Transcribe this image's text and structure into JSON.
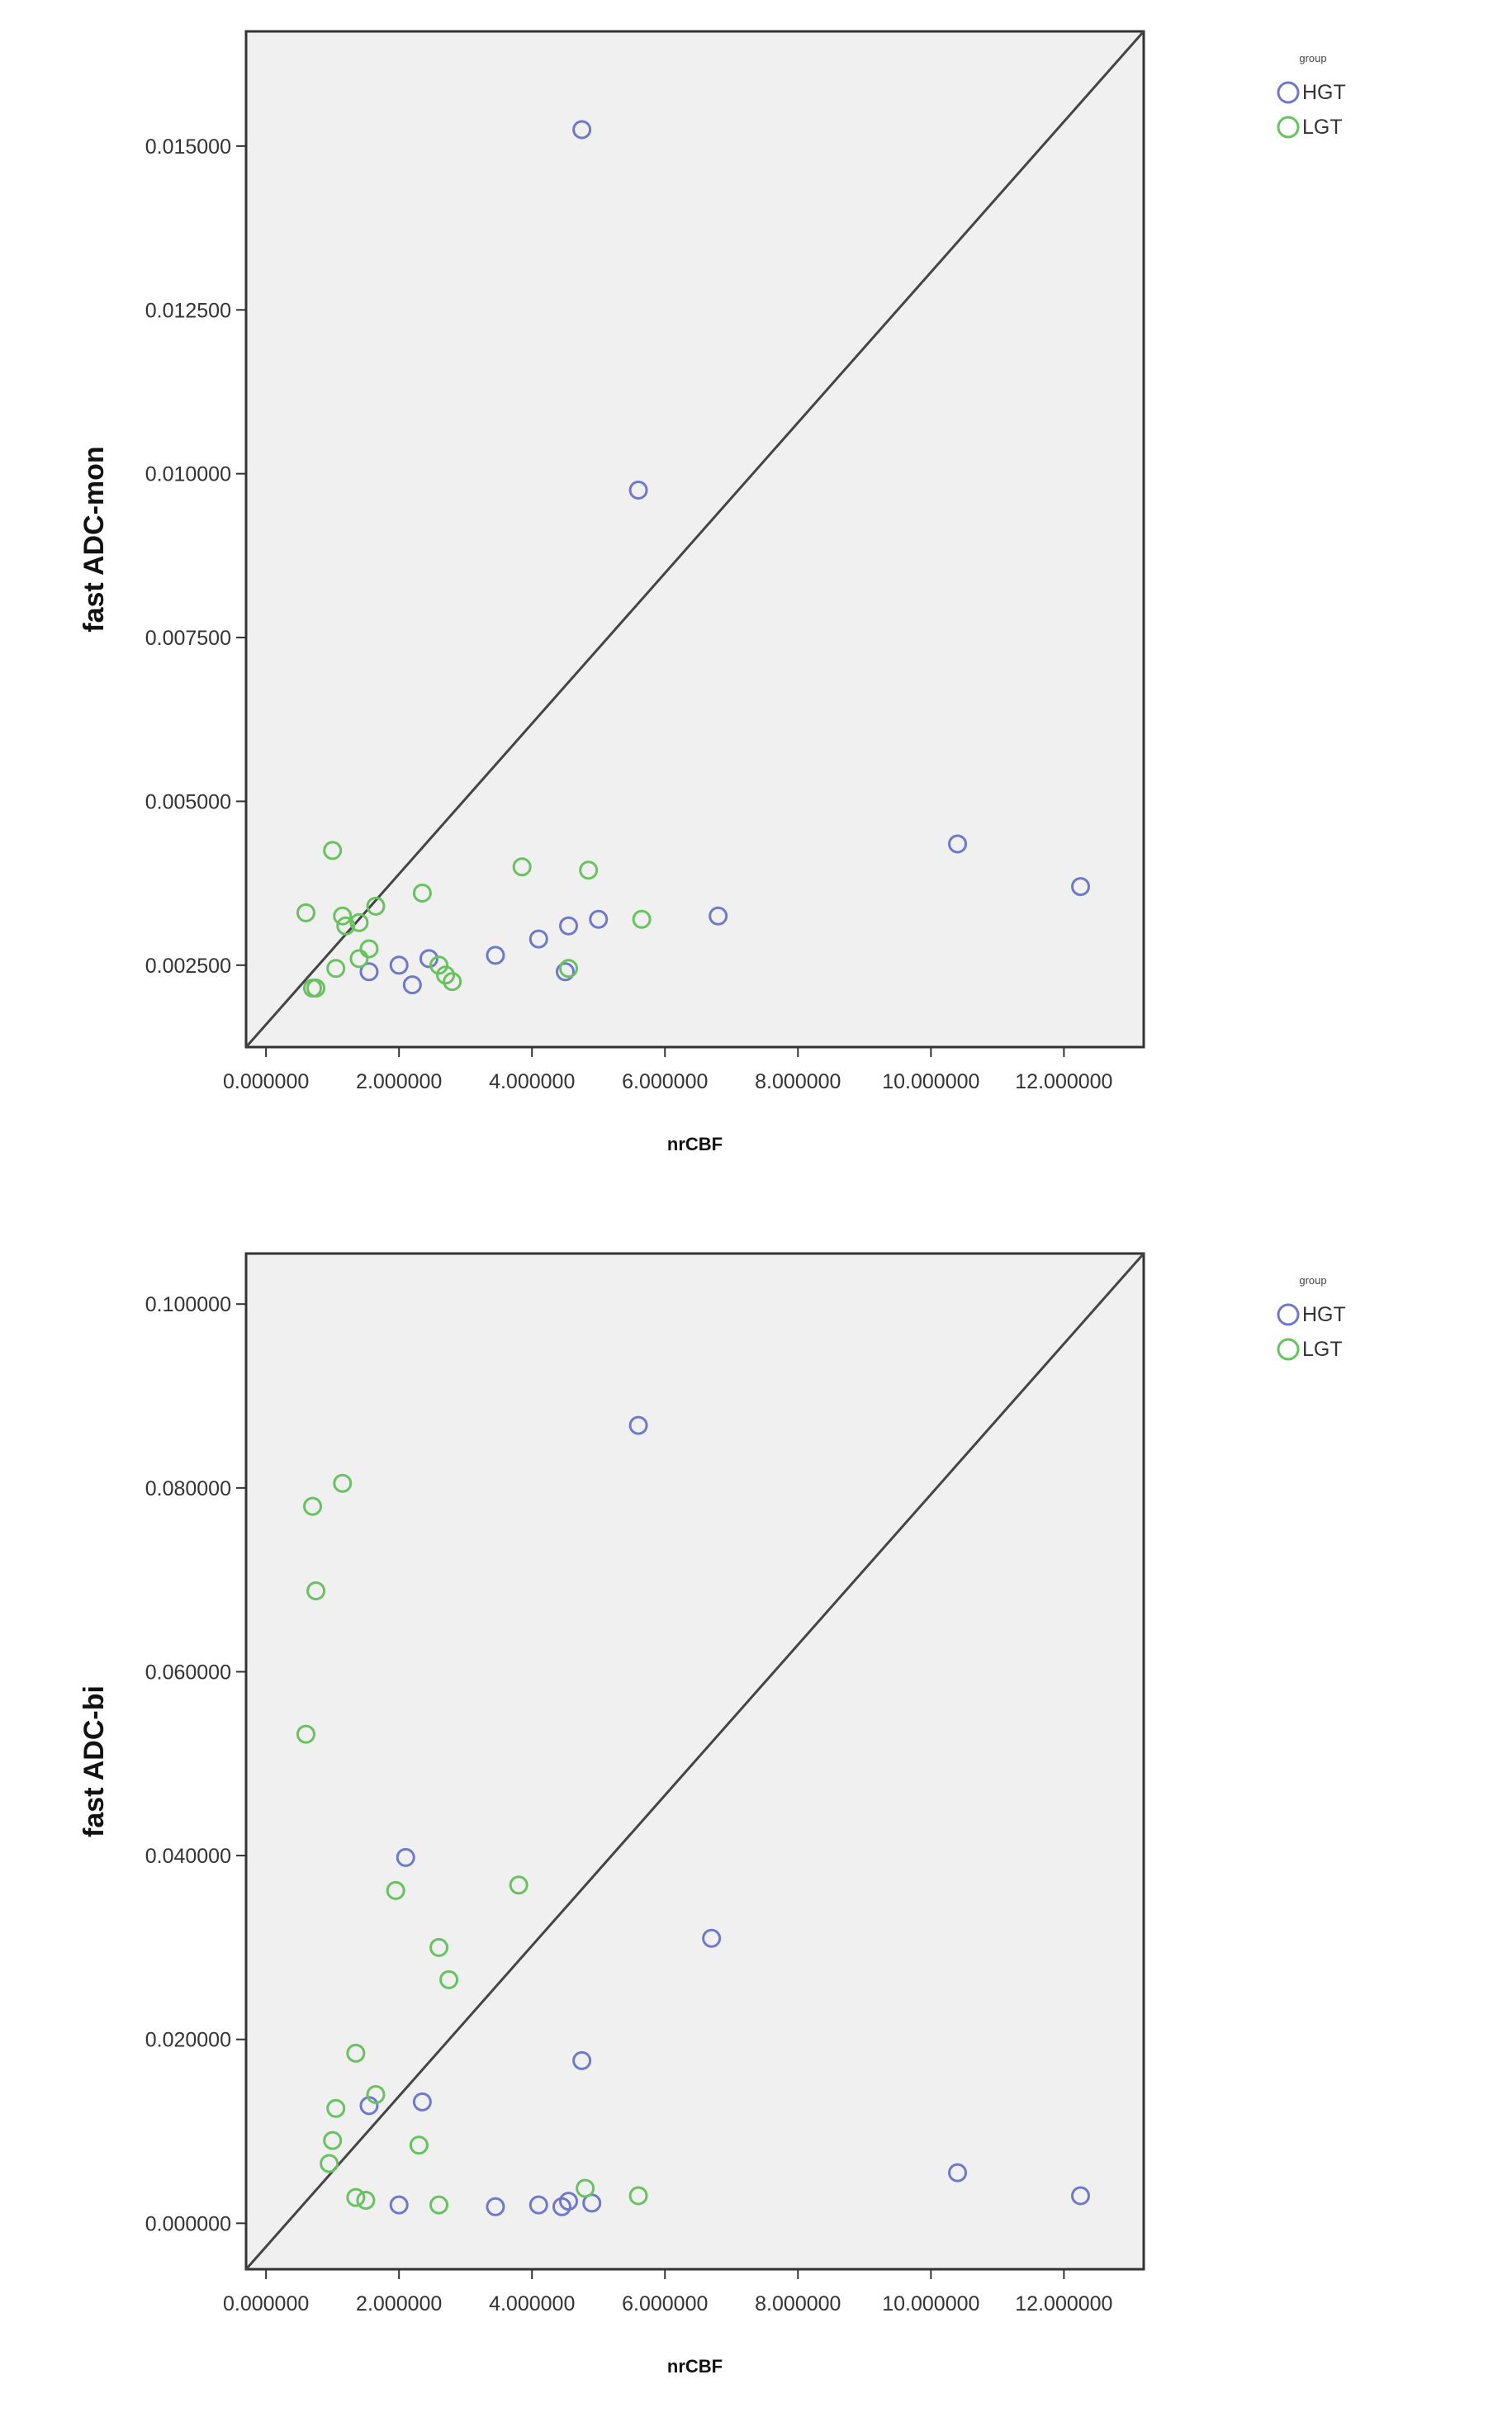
{
  "colors": {
    "HGT": "#6f79c9",
    "LGT": "#67c25f",
    "plot_bg": "#f0f0f0",
    "ref_line": "#444444"
  },
  "chart_data": [
    {
      "type": "scatter",
      "title": "",
      "xlabel": "nrCBF",
      "ylabel": "fast ADC-mon",
      "xlim": [
        -0.3,
        13.2
      ],
      "ylim": [
        0.00125,
        0.01675
      ],
      "xticks": [
        0,
        2,
        4,
        6,
        8,
        10,
        12
      ],
      "xtick_labels": [
        "0.000000",
        "2.000000",
        "4.000000",
        "6.000000",
        "8.000000",
        "10.000000",
        "12.000000"
      ],
      "yticks": [
        0.0025,
        0.005,
        0.0075,
        0.01,
        0.0125,
        0.015
      ],
      "ytick_labels": [
        "0.002500",
        "0.005000",
        "0.007500",
        "0.010000",
        "0.012500",
        "0.015000"
      ],
      "reference_line": "diagonal",
      "grid": false,
      "legend": {
        "title": "group",
        "position": "right",
        "entries": [
          "HGT",
          "LGT"
        ]
      },
      "series": [
        {
          "name": "HGT",
          "points": [
            [
              4.75,
              0.01525
            ],
            [
              5.6,
              0.00975
            ],
            [
              10.4,
              0.00435
            ],
            [
              12.25,
              0.0037
            ],
            [
              6.8,
              0.00325
            ],
            [
              5.0,
              0.0032
            ],
            [
              4.55,
              0.0031
            ],
            [
              4.1,
              0.0029
            ],
            [
              3.45,
              0.00265
            ],
            [
              4.5,
              0.0024
            ],
            [
              2.45,
              0.0026
            ],
            [
              2.0,
              0.0025
            ],
            [
              1.55,
              0.0024
            ],
            [
              2.2,
              0.0022
            ]
          ]
        },
        {
          "name": "LGT",
          "points": [
            [
              1.0,
              0.00425
            ],
            [
              0.6,
              0.0033
            ],
            [
              1.15,
              0.00325
            ],
            [
              1.2,
              0.0031
            ],
            [
              1.4,
              0.00315
            ],
            [
              1.65,
              0.0034
            ],
            [
              2.35,
              0.0036
            ],
            [
              3.85,
              0.004
            ],
            [
              4.85,
              0.00395
            ],
            [
              5.65,
              0.0032
            ],
            [
              1.55,
              0.00275
            ],
            [
              1.4,
              0.0026
            ],
            [
              1.05,
              0.00245
            ],
            [
              0.7,
              0.00215
            ],
            [
              0.75,
              0.00215
            ],
            [
              2.6,
              0.0025
            ],
            [
              2.7,
              0.00235
            ],
            [
              2.8,
              0.00225
            ],
            [
              4.55,
              0.00245
            ]
          ]
        }
      ]
    },
    {
      "type": "scatter",
      "title": "",
      "xlabel": "nrCBF",
      "ylabel": "fast ADC-bi",
      "xlim": [
        -0.3,
        13.2
      ],
      "ylim": [
        -0.005,
        0.1055
      ],
      "xticks": [
        0,
        2,
        4,
        6,
        8,
        10,
        12
      ],
      "xtick_labels": [
        "0.000000",
        "2.000000",
        "4.000000",
        "6.000000",
        "8.000000",
        "10.000000",
        "12.000000"
      ],
      "yticks": [
        0,
        0.02,
        0.04,
        0.06,
        0.08,
        0.1
      ],
      "ytick_labels": [
        "0.000000",
        "0.020000",
        "0.040000",
        "0.060000",
        "0.080000",
        "0.100000"
      ],
      "reference_line": "diagonal",
      "grid": false,
      "legend": {
        "title": "group",
        "position": "right",
        "entries": [
          "HGT",
          "LGT"
        ]
      },
      "series": [
        {
          "name": "HGT",
          "points": [
            [
              5.6,
              0.0868
            ],
            [
              6.7,
              0.031
            ],
            [
              2.1,
              0.0398
            ],
            [
              4.75,
              0.0177
            ],
            [
              2.35,
              0.0132
            ],
            [
              1.55,
              0.0128
            ],
            [
              10.4,
              0.0055
            ],
            [
              12.25,
              0.003
            ],
            [
              2.0,
              0.002
            ],
            [
              3.45,
              0.0018
            ],
            [
              4.1,
              0.002
            ],
            [
              4.45,
              0.0018
            ],
            [
              4.9,
              0.0022
            ],
            [
              4.55,
              0.0024
            ]
          ]
        },
        {
          "name": "LGT",
          "points": [
            [
              1.15,
              0.0805
            ],
            [
              0.7,
              0.078
            ],
            [
              0.75,
              0.0688
            ],
            [
              0.6,
              0.0532
            ],
            [
              1.95,
              0.0362
            ],
            [
              3.8,
              0.0368
            ],
            [
              2.6,
              0.03
            ],
            [
              2.75,
              0.0265
            ],
            [
              1.35,
              0.0185
            ],
            [
              1.65,
              0.014
            ],
            [
              1.05,
              0.0125
            ],
            [
              1.0,
              0.009
            ],
            [
              0.95,
              0.0065
            ],
            [
              2.3,
              0.0085
            ],
            [
              1.35,
              0.0028
            ],
            [
              1.5,
              0.0025
            ],
            [
              2.6,
              0.002
            ],
            [
              4.8,
              0.0038
            ],
            [
              5.6,
              0.003
            ]
          ]
        }
      ]
    }
  ]
}
